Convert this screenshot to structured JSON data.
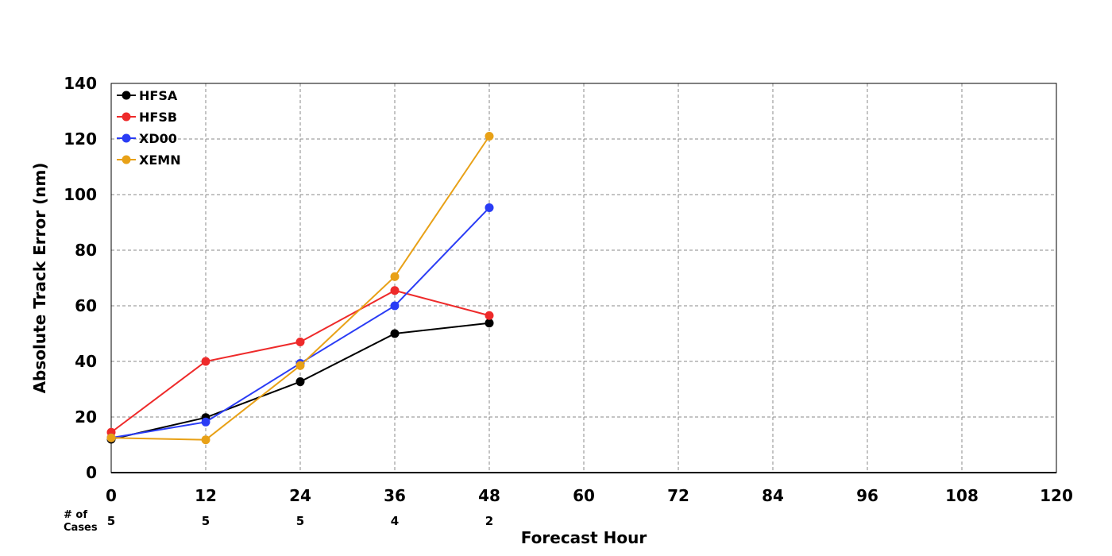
{
  "chart_data": {
    "type": "line",
    "title": "",
    "xlabel": "Forecast Hour",
    "ylabel": "Absolute Track Error (nm)",
    "xlim": [
      0,
      120
    ],
    "ylim": [
      0,
      140
    ],
    "x_ticks": [
      "0",
      "12",
      "24",
      "36",
      "48",
      "60",
      "72",
      "84",
      "96",
      "108",
      "120"
    ],
    "y_ticks": [
      "0",
      "20",
      "40",
      "60",
      "80",
      "100",
      "120",
      "140"
    ],
    "x_tick_values": [
      0,
      12,
      24,
      36,
      48,
      60,
      72,
      84,
      96,
      108,
      120
    ],
    "y_tick_values": [
      0,
      20,
      40,
      60,
      80,
      100,
      120,
      140
    ],
    "grid": true,
    "legend_position": "top-left",
    "cases": {
      "label_line1": "# of",
      "label_line2": "Cases",
      "x": [
        0,
        12,
        24,
        36,
        48
      ],
      "counts": [
        "5",
        "5",
        "5",
        "4",
        "2"
      ]
    },
    "x": [
      0,
      12,
      24,
      36,
      48
    ],
    "series": [
      {
        "name": "HFSA",
        "color": "#000000",
        "values": [
          12.0,
          19.8,
          32.7,
          50.0,
          53.8
        ]
      },
      {
        "name": "HFSB",
        "color": "#ee2a2a",
        "values": [
          14.5,
          40.0,
          47.0,
          65.5,
          56.5
        ]
      },
      {
        "name": "XD00",
        "color": "#2a3cf5",
        "values": [
          12.5,
          18.2,
          39.3,
          60.0,
          95.3
        ]
      },
      {
        "name": "XEMN",
        "color": "#e8a117",
        "values": [
          12.5,
          11.8,
          38.5,
          70.5,
          121.0
        ]
      }
    ]
  }
}
